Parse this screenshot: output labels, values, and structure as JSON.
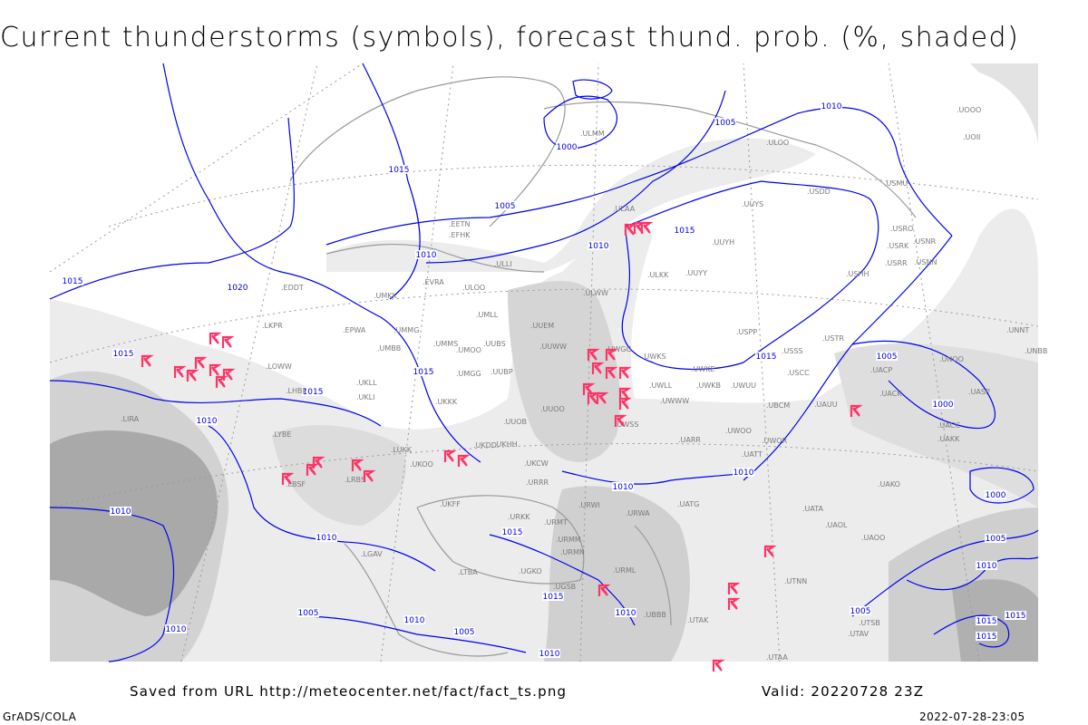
{
  "title": "Current thunderstorms (symbols), forecast thund. prob. (%, shaded)",
  "footer": {
    "source": "Saved from URL http://meteocenter.net/fact/fact_ts.png",
    "valid": "Valid: 20220728 23Z",
    "software": "GrADS/COLA",
    "timestamp": "2022-07-28-23:05"
  },
  "colors": {
    "isobar": "#0000ee",
    "storm_symbol": "#ff3366",
    "coastline": "#999999",
    "shade_light": "#e6e6e6",
    "shade_mid": "#cfcfcf",
    "shade_dark": "#a9a9a9"
  },
  "storm_symbol_icon": "thunderstorm-flag-icon",
  "isobar_labels": [
    "1015",
    "1020",
    "1015",
    "1000",
    "1005",
    "1010",
    "1005",
    "1010",
    "1015",
    "1010",
    "1015",
    "1015",
    "1015",
    "1010",
    "1015",
    "1010",
    "1010",
    "1005",
    "1000",
    "1000",
    "1010",
    "1010",
    "1015",
    "1015",
    "1010",
    "1005",
    "1010",
    "1005",
    "1010",
    "1010",
    "1005",
    "1005",
    "1010",
    "1015",
    "1015",
    "1015"
  ],
  "stations": [
    "ULMM",
    "ULOO",
    "USDD",
    "USMU",
    "UUYS",
    "ULAA",
    "UUYH",
    "USRO",
    "USRK",
    "USNR",
    "USRR",
    "USNN",
    "UUYY",
    "ULKK",
    "USHH",
    "ULWW",
    "UUEM",
    "UUWW",
    "UWGG",
    "UWKS",
    "USPP",
    "USSS",
    "USTR",
    "UWKE",
    "USCC",
    "UWLL",
    "UWKB",
    "UWUU",
    "UWWW",
    "UBCM",
    "UAUU",
    "UACP",
    "UNOO",
    "UACK",
    "UASP",
    "UACC",
    "UAKK",
    "UWOO",
    "UWOR",
    "UATT",
    "UARR",
    "UWSS",
    "URWA",
    "UATG",
    "UATA",
    "UAOL",
    "UAOO",
    "UAKO",
    "UTNN",
    "UTAK",
    "UTAA",
    "UTAV",
    "UTSB",
    "UOOO",
    "UOII",
    "UNNT",
    "UNBB",
    "EDDT",
    "EPWA",
    "EVRA",
    "ULOO",
    "UMKK",
    "UMMG",
    "UMBB",
    "UMMS",
    "UMOO",
    "UUBS",
    "UKLL",
    "UKLI",
    "LOWW",
    "LHBP",
    "LKPR",
    "LYBE",
    "LBSF",
    "LRBS",
    "LUKK",
    "UKOO",
    "UKHH",
    "UKDD",
    "UKFF",
    "URKK",
    "URMT",
    "URMM",
    "URMN",
    "URRR",
    "UKCW",
    "UUOB",
    "UUOO",
    "UMGG",
    "UUBP",
    "UKKK",
    "URWI",
    "URML",
    "UBBB",
    "LGAV",
    "LIRA",
    "UGKO",
    "UGSB",
    "EFHK",
    "EETN",
    "ULLI",
    "UMLL",
    "LTBA"
  ]
}
